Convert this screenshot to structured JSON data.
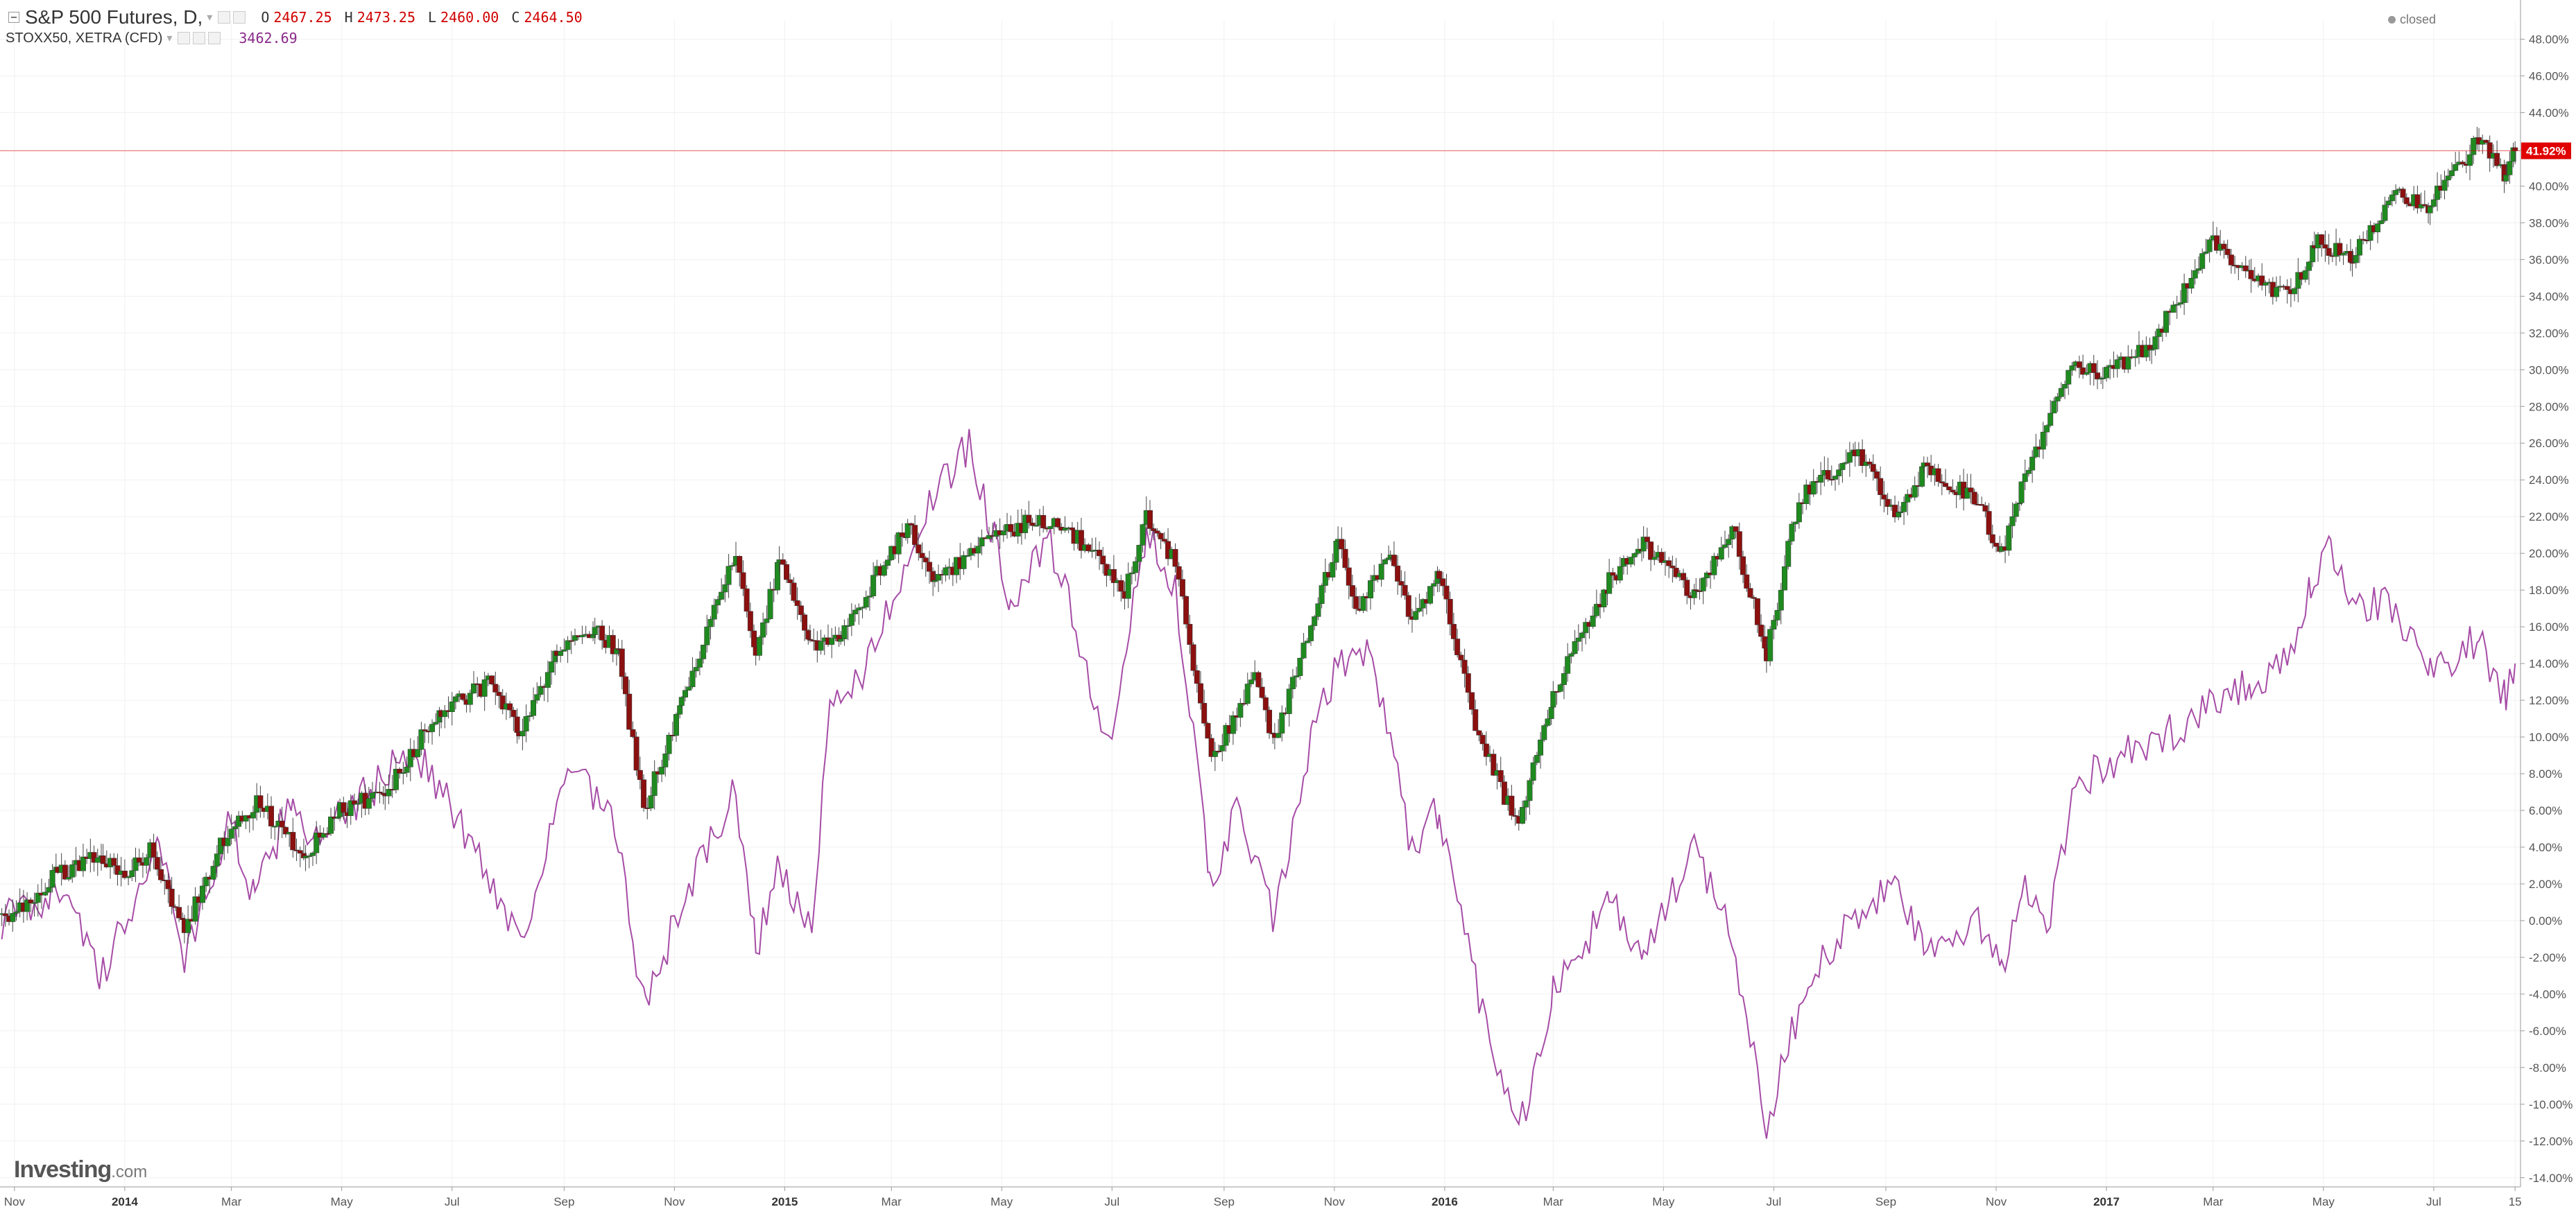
{
  "legend": {
    "main_symbol": "S&P 500 Futures, D,",
    "ohlc": [
      {
        "key": "O",
        "value": "2467.25"
      },
      {
        "key": "H",
        "value": "2473.25"
      },
      {
        "key": "L",
        "value": "2460.00"
      },
      {
        "key": "C",
        "value": "2464.50"
      }
    ],
    "compare_symbol": "STOXX50, XETRA (CFD)",
    "compare_value": "3462.69"
  },
  "status_text": "closed",
  "brand": {
    "name": "Investing",
    "suffix": ".com"
  },
  "colors": {
    "up_candle": "#1f8a1f",
    "down_candle": "#8b1010",
    "compare_line": "#a64ca6",
    "last_price": "#e00000",
    "grid": "#f0f0f0",
    "axis": "#555555"
  },
  "chart_data": {
    "type": "line",
    "y_scale": "percent change",
    "ylim": [
      -14.5,
      49
    ],
    "y_ticks": [
      "48.00%",
      "46.00%",
      "44.00%",
      "42.00%",
      "40.00%",
      "38.00%",
      "36.00%",
      "34.00%",
      "32.00%",
      "30.00%",
      "28.00%",
      "26.00%",
      "24.00%",
      "22.00%",
      "20.00%",
      "18.00%",
      "16.00%",
      "14.00%",
      "12.00%",
      "10.00%",
      "8.00%",
      "6.00%",
      "4.00%",
      "2.00%",
      "0.00%",
      "-2.00%",
      "-4.00%",
      "-6.00%",
      "-8.00%",
      "-10.00%",
      "-12.00%",
      "-14.00%"
    ],
    "y_tick_values": [
      48,
      46,
      44,
      42,
      40,
      38,
      36,
      34,
      32,
      30,
      28,
      26,
      24,
      22,
      20,
      18,
      16,
      14,
      12,
      10,
      8,
      6,
      4,
      2,
      0,
      -2,
      -4,
      -6,
      -8,
      -10,
      -12,
      -14
    ],
    "x_ticks": [
      "Nov",
      "2014",
      "Mar",
      "May",
      "Jul",
      "Sep",
      "Nov",
      "2015",
      "Mar",
      "May",
      "Jul",
      "Sep",
      "Nov",
      "2016",
      "Mar",
      "May",
      "Jul",
      "Sep",
      "Nov",
      "2017",
      "Mar",
      "May",
      "Jul",
      "15"
    ],
    "x_tick_dates": [
      "2013-11-01",
      "2014-01-01",
      "2014-03-01",
      "2014-05-01",
      "2014-07-01",
      "2014-09-01",
      "2014-11-01",
      "2015-01-01",
      "2015-03-01",
      "2015-05-01",
      "2015-07-01",
      "2015-09-01",
      "2015-11-01",
      "2016-01-01",
      "2016-03-01",
      "2016-05-01",
      "2016-07-01",
      "2016-09-01",
      "2016-11-01",
      "2017-01-01",
      "2017-03-01",
      "2017-05-01",
      "2017-07-01",
      "2017-08-15"
    ],
    "x_range": [
      "2013-10-24",
      "2017-08-18"
    ],
    "last_value_label": "41.92%",
    "last_value": 41.92,
    "series": [
      {
        "name": "S&P 500 Futures, D,",
        "style": "candlestick",
        "points": [
          {
            "x": "2013-10-25",
            "y": 0.0
          },
          {
            "x": "2013-11-25",
            "y": 2.5
          },
          {
            "x": "2013-12-20",
            "y": 3.5
          },
          {
            "x": "2014-01-03",
            "y": 2.5
          },
          {
            "x": "2014-01-15",
            "y": 4.0
          },
          {
            "x": "2014-02-03",
            "y": -0.5
          },
          {
            "x": "2014-02-25",
            "y": 4.5
          },
          {
            "x": "2014-03-15",
            "y": 6.5
          },
          {
            "x": "2014-04-11",
            "y": 3.5
          },
          {
            "x": "2014-04-30",
            "y": 6.0
          },
          {
            "x": "2014-05-25",
            "y": 7.0
          },
          {
            "x": "2014-06-25",
            "y": 11.5
          },
          {
            "x": "2014-07-23",
            "y": 13.0
          },
          {
            "x": "2014-08-07",
            "y": 10.0
          },
          {
            "x": "2014-08-28",
            "y": 14.5
          },
          {
            "x": "2014-09-18",
            "y": 16.0
          },
          {
            "x": "2014-10-01",
            "y": 14.5
          },
          {
            "x": "2014-10-15",
            "y": 6.0
          },
          {
            "x": "2014-11-05",
            "y": 12.0
          },
          {
            "x": "2014-12-05",
            "y": 20.0
          },
          {
            "x": "2014-12-16",
            "y": 14.5
          },
          {
            "x": "2014-12-29",
            "y": 19.5
          },
          {
            "x": "2015-01-15",
            "y": 15.0
          },
          {
            "x": "2015-02-01",
            "y": 15.5
          },
          {
            "x": "2015-02-25",
            "y": 19.5
          },
          {
            "x": "2015-03-10",
            "y": 21.5
          },
          {
            "x": "2015-03-25",
            "y": 18.5
          },
          {
            "x": "2015-04-20",
            "y": 20.5
          },
          {
            "x": "2015-05-20",
            "y": 22.0
          },
          {
            "x": "2015-06-10",
            "y": 21.0
          },
          {
            "x": "2015-07-08",
            "y": 18.0
          },
          {
            "x": "2015-07-20",
            "y": 22.0
          },
          {
            "x": "2015-08-05",
            "y": 19.5
          },
          {
            "x": "2015-08-25",
            "y": 8.5
          },
          {
            "x": "2015-09-18",
            "y": 13.5
          },
          {
            "x": "2015-09-29",
            "y": 9.5
          },
          {
            "x": "2015-10-15",
            "y": 15.0
          },
          {
            "x": "2015-11-03",
            "y": 20.5
          },
          {
            "x": "2015-11-13",
            "y": 17.0
          },
          {
            "x": "2015-12-02",
            "y": 20.0
          },
          {
            "x": "2015-12-14",
            "y": 16.0
          },
          {
            "x": "2015-12-29",
            "y": 19.0
          },
          {
            "x": "2016-01-20",
            "y": 10.0
          },
          {
            "x": "2016-02-11",
            "y": 5.0
          },
          {
            "x": "2016-03-01",
            "y": 12.5
          },
          {
            "x": "2016-04-01",
            "y": 18.5
          },
          {
            "x": "2016-04-20",
            "y": 20.5
          },
          {
            "x": "2016-05-19",
            "y": 17.5
          },
          {
            "x": "2016-06-08",
            "y": 21.5
          },
          {
            "x": "2016-06-27",
            "y": 14.5
          },
          {
            "x": "2016-07-15",
            "y": 23.0
          },
          {
            "x": "2016-08-15",
            "y": 25.5
          },
          {
            "x": "2016-09-09",
            "y": 22.0
          },
          {
            "x": "2016-09-22",
            "y": 24.5
          },
          {
            "x": "2016-10-20",
            "y": 23.0
          },
          {
            "x": "2016-11-04",
            "y": 20.0
          },
          {
            "x": "2016-11-15",
            "y": 23.5
          },
          {
            "x": "2016-12-13",
            "y": 30.5
          },
          {
            "x": "2016-12-30",
            "y": 29.5
          },
          {
            "x": "2017-01-26",
            "y": 31.5
          },
          {
            "x": "2017-03-01",
            "y": 37.0
          },
          {
            "x": "2017-03-22",
            "y": 35.0
          },
          {
            "x": "2017-04-13",
            "y": 34.0
          },
          {
            "x": "2017-04-26",
            "y": 37.0
          },
          {
            "x": "2017-05-17",
            "y": 36.0
          },
          {
            "x": "2017-06-08",
            "y": 39.5
          },
          {
            "x": "2017-06-29",
            "y": 39.0
          },
          {
            "x": "2017-07-26",
            "y": 42.5
          },
          {
            "x": "2017-08-10",
            "y": 40.5
          },
          {
            "x": "2017-08-15",
            "y": 41.92
          }
        ]
      },
      {
        "name": "STOXX50, XETRA (CFD)",
        "style": "line",
        "points": [
          {
            "x": "2013-10-25",
            "y": 0.0
          },
          {
            "x": "2013-12-01",
            "y": 2.0
          },
          {
            "x": "2013-12-18",
            "y": -3.5
          },
          {
            "x": "2014-01-20",
            "y": 4.5
          },
          {
            "x": "2014-02-03",
            "y": -2.0
          },
          {
            "x": "2014-03-01",
            "y": 5.5
          },
          {
            "x": "2014-03-14",
            "y": 1.0
          },
          {
            "x": "2014-04-04",
            "y": 7.0
          },
          {
            "x": "2014-04-15",
            "y": 4.0
          },
          {
            "x": "2014-06-10",
            "y": 9.5
          },
          {
            "x": "2014-07-10",
            "y": 4.5
          },
          {
            "x": "2014-08-08",
            "y": -1.0
          },
          {
            "x": "2014-09-05",
            "y": 8.5
          },
          {
            "x": "2014-09-29",
            "y": 5.0
          },
          {
            "x": "2014-10-16",
            "y": -5.0
          },
          {
            "x": "2014-11-05",
            "y": 1.0
          },
          {
            "x": "2014-12-05",
            "y": 7.0
          },
          {
            "x": "2014-12-16",
            "y": -1.5
          },
          {
            "x": "2014-12-29",
            "y": 3.0
          },
          {
            "x": "2015-01-16",
            "y": -1.0
          },
          {
            "x": "2015-01-26",
            "y": 11.5
          },
          {
            "x": "2015-02-16",
            "y": 14.0
          },
          {
            "x": "2015-03-16",
            "y": 21.5
          },
          {
            "x": "2015-04-13",
            "y": 26.0
          },
          {
            "x": "2015-05-06",
            "y": 17.5
          },
          {
            "x": "2015-05-28",
            "y": 20.5
          },
          {
            "x": "2015-06-15",
            "y": 14.5
          },
          {
            "x": "2015-06-29",
            "y": 9.0
          },
          {
            "x": "2015-07-20",
            "y": 21.0
          },
          {
            "x": "2015-08-05",
            "y": 18.5
          },
          {
            "x": "2015-08-24",
            "y": 2.0
          },
          {
            "x": "2015-09-08",
            "y": 6.0
          },
          {
            "x": "2015-09-29",
            "y": 0.0
          },
          {
            "x": "2015-10-20",
            "y": 10.0
          },
          {
            "x": "2015-11-03",
            "y": 14.0
          },
          {
            "x": "2015-11-20",
            "y": 15.0
          },
          {
            "x": "2015-12-14",
            "y": 4.0
          },
          {
            "x": "2015-12-29",
            "y": 6.0
          },
          {
            "x": "2016-01-20",
            "y": -4.0
          },
          {
            "x": "2016-02-11",
            "y": -11.5
          },
          {
            "x": "2016-03-01",
            "y": -4.0
          },
          {
            "x": "2016-04-01",
            "y": 1.0
          },
          {
            "x": "2016-04-20",
            "y": -2.0
          },
          {
            "x": "2016-05-19",
            "y": 4.0
          },
          {
            "x": "2016-06-08",
            "y": -1.0
          },
          {
            "x": "2016-06-27",
            "y": -11.0
          },
          {
            "x": "2016-07-20",
            "y": -3.0
          },
          {
            "x": "2016-08-15",
            "y": 0.0
          },
          {
            "x": "2016-09-09",
            "y": 2.0
          },
          {
            "x": "2016-09-22",
            "y": -2.0
          },
          {
            "x": "2016-10-20",
            "y": 0.0
          },
          {
            "x": "2016-11-04",
            "y": -2.5
          },
          {
            "x": "2016-11-15",
            "y": 2.0
          },
          {
            "x": "2016-12-01",
            "y": 0.0
          },
          {
            "x": "2016-12-13",
            "y": 7.0
          },
          {
            "x": "2016-12-30",
            "y": 8.5
          },
          {
            "x": "2017-01-26",
            "y": 9.5
          },
          {
            "x": "2017-03-01",
            "y": 12.0
          },
          {
            "x": "2017-03-22",
            "y": 13.0
          },
          {
            "x": "2017-04-13",
            "y": 14.0
          },
          {
            "x": "2017-04-24",
            "y": 18.0
          },
          {
            "x": "2017-05-05",
            "y": 20.5
          },
          {
            "x": "2017-05-17",
            "y": 17.5
          },
          {
            "x": "2017-06-08",
            "y": 17.0
          },
          {
            "x": "2017-06-29",
            "y": 13.5
          },
          {
            "x": "2017-07-26",
            "y": 15.5
          },
          {
            "x": "2017-08-10",
            "y": 12.0
          },
          {
            "x": "2017-08-15",
            "y": 14.0
          }
        ]
      }
    ]
  }
}
